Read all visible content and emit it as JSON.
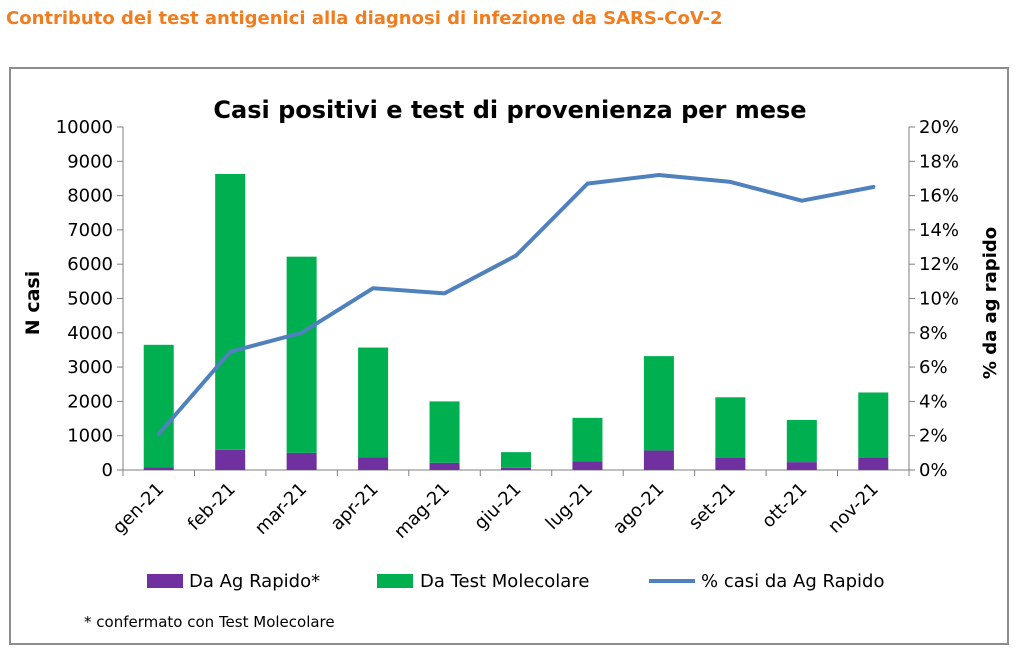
{
  "page_heading": "Contributo dei test antigenici alla diagnosi di infezione da SARS-CoV-2",
  "colors": {
    "heading": "#f07d1f",
    "ag_rapido": "#7030a0",
    "test_molecolare": "#00b050",
    "pct_line": "#4f81bd",
    "frame": "#8c8c8c"
  },
  "chart_data": {
    "type": "bar",
    "stacked": true,
    "title": "Casi positivi e test di provenienza per mese",
    "ylabel": "N casi",
    "y2label": "% da ag rapido",
    "ylim": [
      0,
      10000
    ],
    "y2lim": [
      0,
      20
    ],
    "yticks": [
      "0",
      "1000",
      "2000",
      "3000",
      "4000",
      "5000",
      "6000",
      "7000",
      "8000",
      "9000",
      "10000"
    ],
    "y2ticks": [
      "0%",
      "2%",
      "4%",
      "6%",
      "8%",
      "10%",
      "12%",
      "14%",
      "16%",
      "18%",
      "20%"
    ],
    "categories": [
      "gen-21",
      "feb-21",
      "mar-21",
      "apr-21",
      "mag-21",
      "giu-21",
      "lug-21",
      "ago-21",
      "set-21",
      "ott-21",
      "nov-21"
    ],
    "series": [
      {
        "name": "Da Ag Rapido*",
        "type": "bar",
        "values": [
          75,
          590,
          500,
          375,
          210,
          65,
          250,
          570,
          350,
          230,
          370
        ]
      },
      {
        "name": "Da Test Molecolare",
        "type": "bar",
        "values": [
          3575,
          8040,
          5720,
          3195,
          1790,
          455,
          1270,
          2750,
          1770,
          1230,
          1890
        ]
      },
      {
        "name": "% casi da Ag Rapido",
        "type": "line",
        "axis": "right",
        "values": [
          2.1,
          6.9,
          8.0,
          10.6,
          10.3,
          12.5,
          16.7,
          17.2,
          16.8,
          15.7,
          16.5
        ]
      }
    ],
    "legend": "bottom",
    "grid": false,
    "footnote": "* confermato con Test Molecolare"
  }
}
